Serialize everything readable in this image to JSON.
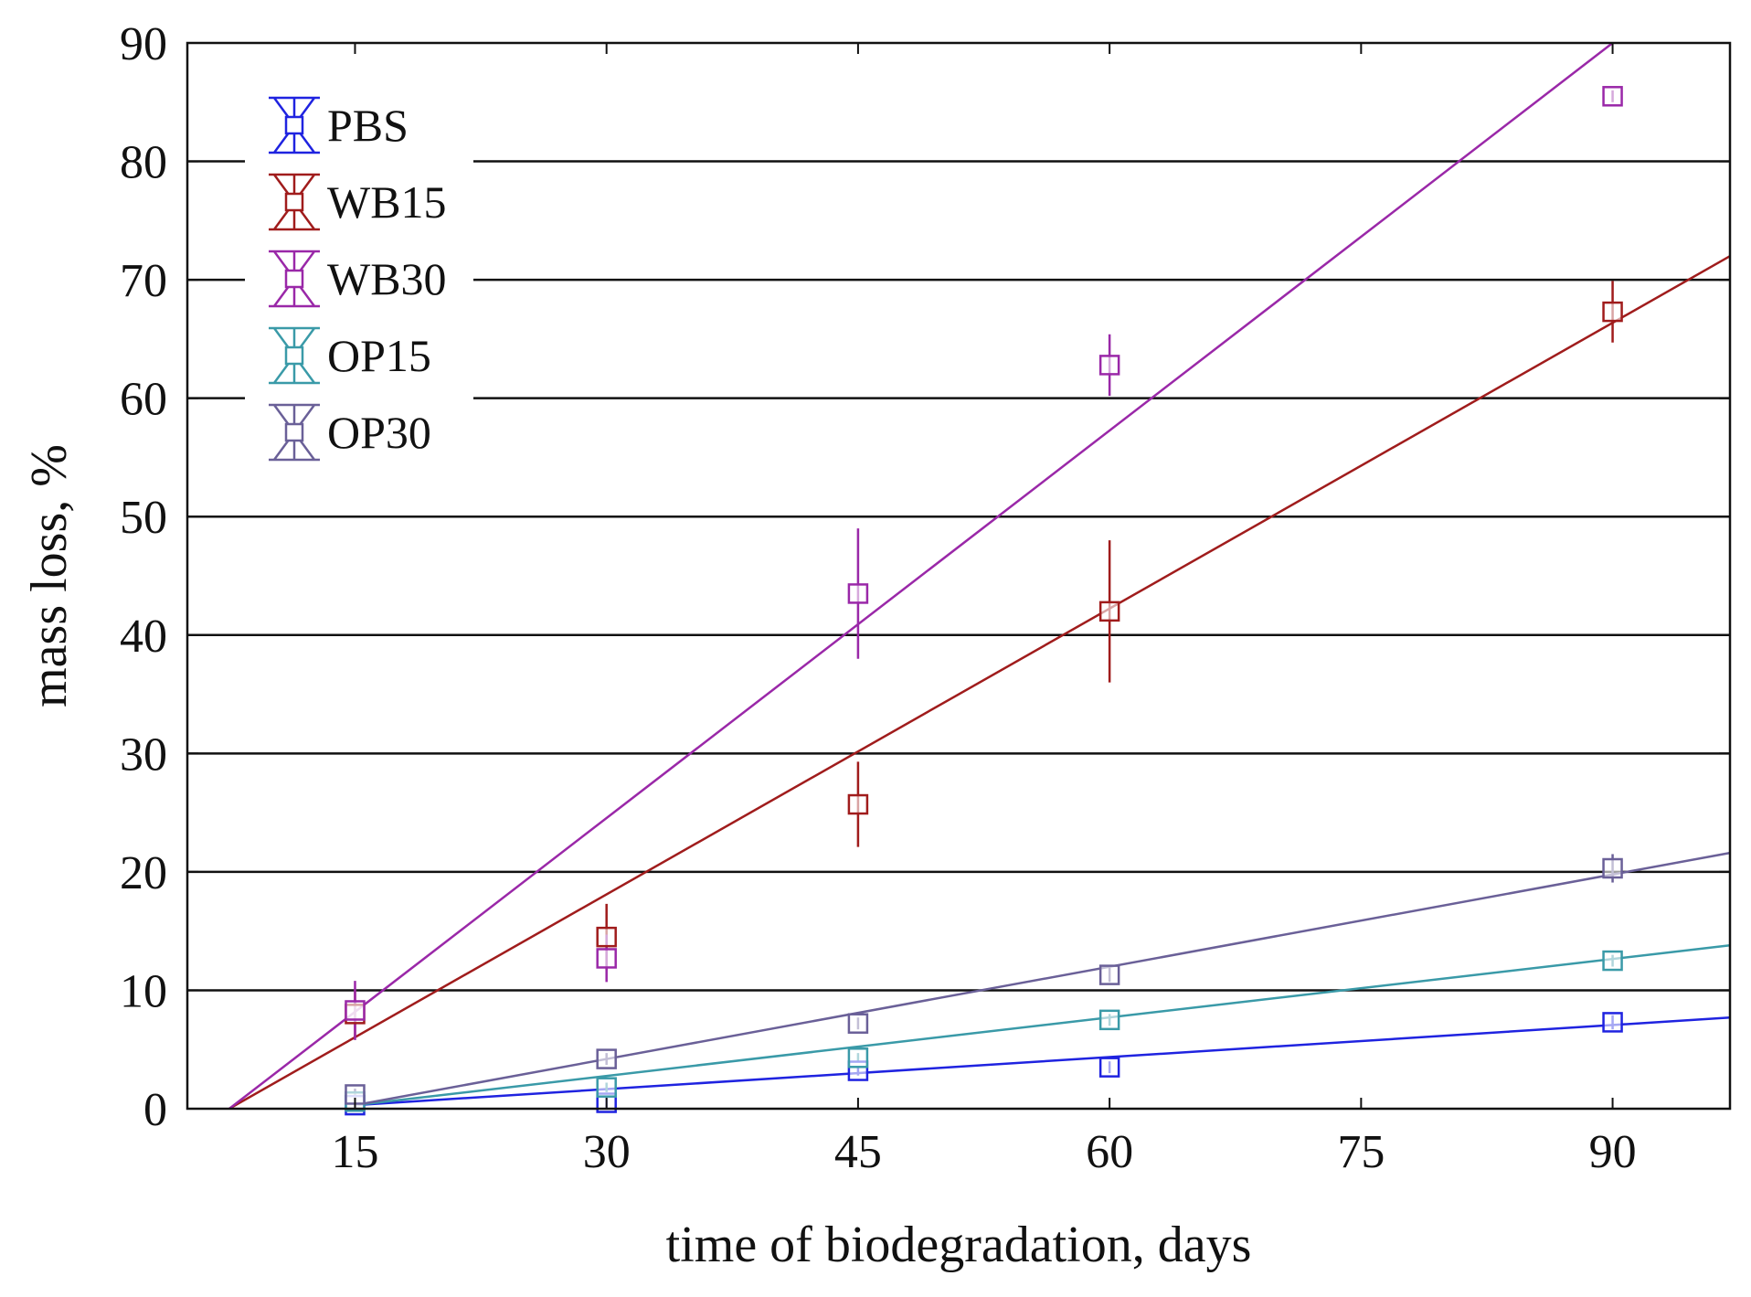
{
  "chart_data": {
    "type": "scatter",
    "title": "",
    "xlabel": "time of biodegradation, days",
    "ylabel": "mass loss, %",
    "xlim": [
      5,
      97
    ],
    "ylim": [
      0,
      90
    ],
    "xticks": [
      15,
      30,
      45,
      60,
      75,
      90
    ],
    "yticks": [
      0,
      10,
      20,
      30,
      40,
      50,
      60,
      70,
      80,
      90
    ],
    "grid": "horizontal",
    "legend_position": "top-left",
    "series": [
      {
        "name": "PBS",
        "color": "#1f23e0",
        "x": [
          15,
          30,
          45,
          60,
          90
        ],
        "y": [
          0.3,
          0.5,
          3.2,
          3.5,
          7.3
        ],
        "err": [
          0.4,
          0.4,
          0.4,
          0.5,
          0.6
        ],
        "fit": {
          "x": [
            15,
            97
          ],
          "y": [
            0.3,
            7.7
          ]
        }
      },
      {
        "name": "WB15",
        "color": "#a01c1c",
        "x": [
          15,
          30,
          45,
          60,
          90
        ],
        "y": [
          8.0,
          14.5,
          25.7,
          42.0,
          67.3
        ],
        "err": [
          2.0,
          2.8,
          3.6,
          6.0,
          2.6
        ],
        "fit": {
          "x": [
            7.5,
            97
          ],
          "y": [
            0,
            72
          ]
        }
      },
      {
        "name": "WB30",
        "color": "#9a28a8",
        "x": [
          15,
          30,
          45,
          60,
          90
        ],
        "y": [
          8.3,
          12.7,
          43.5,
          62.8,
          85.5
        ],
        "err": [
          2.5,
          2.0,
          5.5,
          2.6,
          0.5
        ],
        "fit": {
          "x": [
            7.5,
            90
          ],
          "y": [
            0,
            90
          ]
        }
      },
      {
        "name": "OP15",
        "color": "#3a9aa8",
        "x": [
          15,
          30,
          45,
          60,
          90
        ],
        "y": [
          0.6,
          1.8,
          4.3,
          7.5,
          12.5
        ],
        "err": [
          0.3,
          0.4,
          0.4,
          0.5,
          0.5
        ],
        "fit": {
          "x": [
            15,
            97
          ],
          "y": [
            0.3,
            13.8
          ]
        }
      },
      {
        "name": "OP30",
        "color": "#6a6098",
        "x": [
          15,
          30,
          45,
          60,
          90
        ],
        "y": [
          1.2,
          4.2,
          7.2,
          11.3,
          20.3
        ],
        "err": [
          0.5,
          0.5,
          0.5,
          0.6,
          1.2
        ],
        "fit": {
          "x": [
            15,
            97
          ],
          "y": [
            0.3,
            21.6
          ]
        }
      }
    ]
  }
}
